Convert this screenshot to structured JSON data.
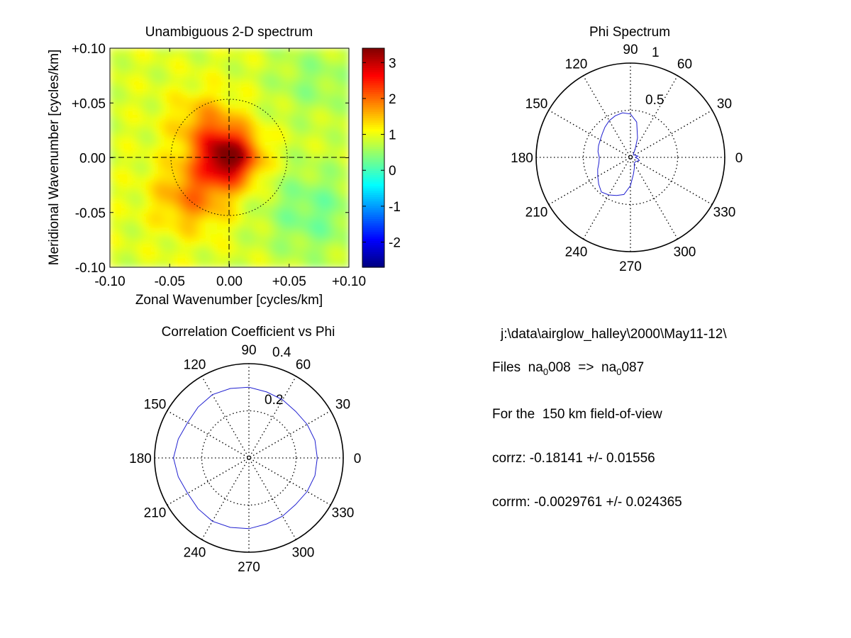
{
  "chart_data": [
    {
      "type": "heatmap",
      "title": "Unambiguous 2-D spectrum",
      "xlabel": "Zonal Wavenumber [cycles/km]",
      "ylabel": "Meridional Wavenumber [cycles/km]",
      "xlim": [
        -0.1,
        0.1
      ],
      "ylim": [
        -0.1,
        0.1
      ],
      "xticks": [
        "-0.10",
        "-0.05",
        "0.00",
        "+0.05",
        "+0.10"
      ],
      "yticks": [
        "+0.10",
        "+0.05",
        "0.00",
        "-0.05",
        "-0.10"
      ],
      "colorbar": {
        "range": [
          -2.7,
          3.4
        ],
        "ticks": [
          3,
          2,
          1,
          0,
          -1,
          -2
        ],
        "colormap": "jet"
      },
      "background_level": 0.9,
      "peaks": [
        {
          "x": 0.0,
          "y": 0.0,
          "value": 3.4
        },
        {
          "x": -0.03,
          "y": -0.03,
          "value": 2.4
        },
        {
          "x": -0.015,
          "y": 0.04,
          "value": 1.9
        }
      ],
      "dotted_circle_radius": 0.05,
      "crosshair": "dashed"
    },
    {
      "type": "polar",
      "title": "Phi Spectrum",
      "rmax": 1,
      "ring_labels": [
        "0.5",
        "1"
      ],
      "angle_labels": [
        "0",
        "30",
        "60",
        "90",
        "120",
        "150",
        "180",
        "210",
        "240",
        "270",
        "300",
        "330"
      ],
      "series": [
        {
          "theta_deg": [
            0,
            10,
            20,
            30,
            40,
            50,
            60,
            70,
            80,
            90,
            100,
            110,
            120,
            130,
            140,
            150,
            160,
            170,
            180,
            190,
            200,
            210,
            220,
            230,
            240,
            250,
            260,
            270,
            280,
            290,
            300,
            310,
            320,
            330,
            340,
            350
          ],
          "r": [
            0.05,
            0.08,
            0.06,
            0.05,
            0.04,
            0.05,
            0.1,
            0.22,
            0.38,
            0.46,
            0.48,
            0.47,
            0.45,
            0.42,
            0.39,
            0.37,
            0.36,
            0.35,
            0.33,
            0.34,
            0.37,
            0.4,
            0.44,
            0.48,
            0.46,
            0.43,
            0.4,
            0.3,
            0.18,
            0.12,
            0.08,
            0.07,
            0.07,
            0.08,
            0.1,
            0.08
          ]
        }
      ]
    },
    {
      "type": "polar",
      "title": "Correlation Coefficient vs Phi",
      "rmax": 0.4,
      "ring_labels": [
        "0.2",
        "0.4"
      ],
      "angle_labels": [
        "0",
        "30",
        "60",
        "90",
        "120",
        "150",
        "180",
        "210",
        "240",
        "270",
        "300",
        "330"
      ],
      "series": [
        {
          "theta_deg": [
            0,
            15,
            30,
            45,
            60,
            75,
            90,
            105,
            120,
            135,
            150,
            165,
            180,
            195,
            210,
            225,
            240,
            255,
            270,
            285,
            300,
            315,
            330,
            345
          ],
          "r": [
            0.29,
            0.29,
            0.285,
            0.28,
            0.285,
            0.29,
            0.3,
            0.305,
            0.31,
            0.305,
            0.3,
            0.31,
            0.32,
            0.31,
            0.3,
            0.305,
            0.31,
            0.305,
            0.3,
            0.29,
            0.285,
            0.28,
            0.285,
            0.29
          ]
        }
      ]
    }
  ],
  "info": {
    "path": "j:\\data\\airglow_halley\\2000\\May11-12\\",
    "files_prefix": "Files  na",
    "files_sub1": "0",
    "files_mid": "008  =>  na",
    "files_sub2": "0",
    "files_end": "087",
    "fov": "For the  150 km field-of-view",
    "corrz": "corrz: -0.18141 +/- 0.01556",
    "corrm": "corrm: -0.0029761 +/- 0.024365"
  }
}
